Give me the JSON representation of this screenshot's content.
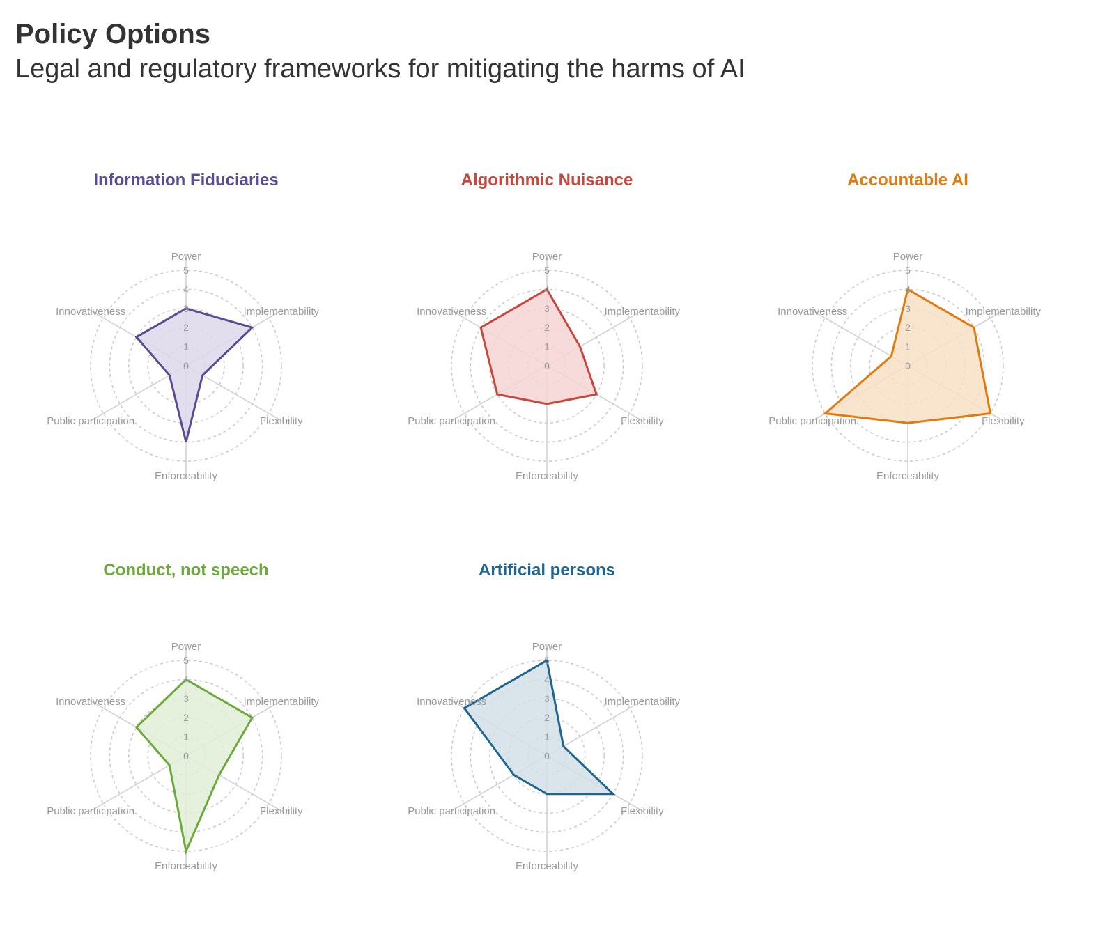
{
  "header": {
    "title": "Policy Options",
    "subtitle": "Legal and regulatory frameworks for mitigating the harms of AI"
  },
  "chart_data": [
    {
      "type": "radar",
      "title": "Information Fiduciaries",
      "color": "#5b4a94",
      "fill": "#ddd8ea",
      "axes": [
        "Power",
        "Implementability",
        "Flexibility",
        "Enforceability",
        "Public participation",
        "Innovativeness"
      ],
      "values": [
        3,
        4,
        1,
        4,
        1,
        3
      ],
      "rlim": [
        0,
        5
      ],
      "ticks": [
        0,
        1,
        2,
        3,
        4,
        5
      ]
    },
    {
      "type": "radar",
      "title": "Algorithmic Nuisance",
      "color": "#c9463d",
      "fill": "#f6d5d3",
      "axes": [
        "Power",
        "Implementability",
        "Flexibility",
        "Enforceability",
        "Public participation",
        "Innovativeness"
      ],
      "values": [
        4,
        2,
        3,
        2,
        3,
        4
      ],
      "rlim": [
        0,
        5
      ],
      "ticks": [
        0,
        1,
        2,
        3,
        4,
        5
      ]
    },
    {
      "type": "radar",
      "title": "Accountable AI",
      "color": "#e07b10",
      "fill": "#f8dfc5",
      "axes": [
        "Power",
        "Implementability",
        "Flexibility",
        "Enforceability",
        "Public participation",
        "Innovativeness"
      ],
      "values": [
        4,
        4,
        5,
        3,
        5,
        1
      ],
      "rlim": [
        0,
        5
      ],
      "ticks": [
        0,
        1,
        2,
        3,
        4,
        5
      ]
    },
    {
      "type": "radar",
      "title": "Conduct, not speech",
      "color": "#6aaa3a",
      "fill": "#e2efd7",
      "axes": [
        "Power",
        "Implementability",
        "Flexibility",
        "Enforceability",
        "Public participation",
        "Innovativeness"
      ],
      "values": [
        4,
        4,
        2,
        5,
        1,
        3
      ],
      "rlim": [
        0,
        5
      ],
      "ticks": [
        0,
        1,
        2,
        3,
        4,
        5
      ]
    },
    {
      "type": "radar",
      "title": "Artificial persons",
      "color": "#1f6591",
      "fill": "#d2dfe8",
      "axes": [
        "Power",
        "Implementability",
        "Flexibility",
        "Enforceability",
        "Public participation",
        "Innovativeness"
      ],
      "values": [
        5,
        1,
        4,
        2,
        2,
        5
      ],
      "rlim": [
        0,
        5
      ],
      "ticks": [
        0,
        1,
        2,
        3,
        4,
        5
      ]
    }
  ]
}
